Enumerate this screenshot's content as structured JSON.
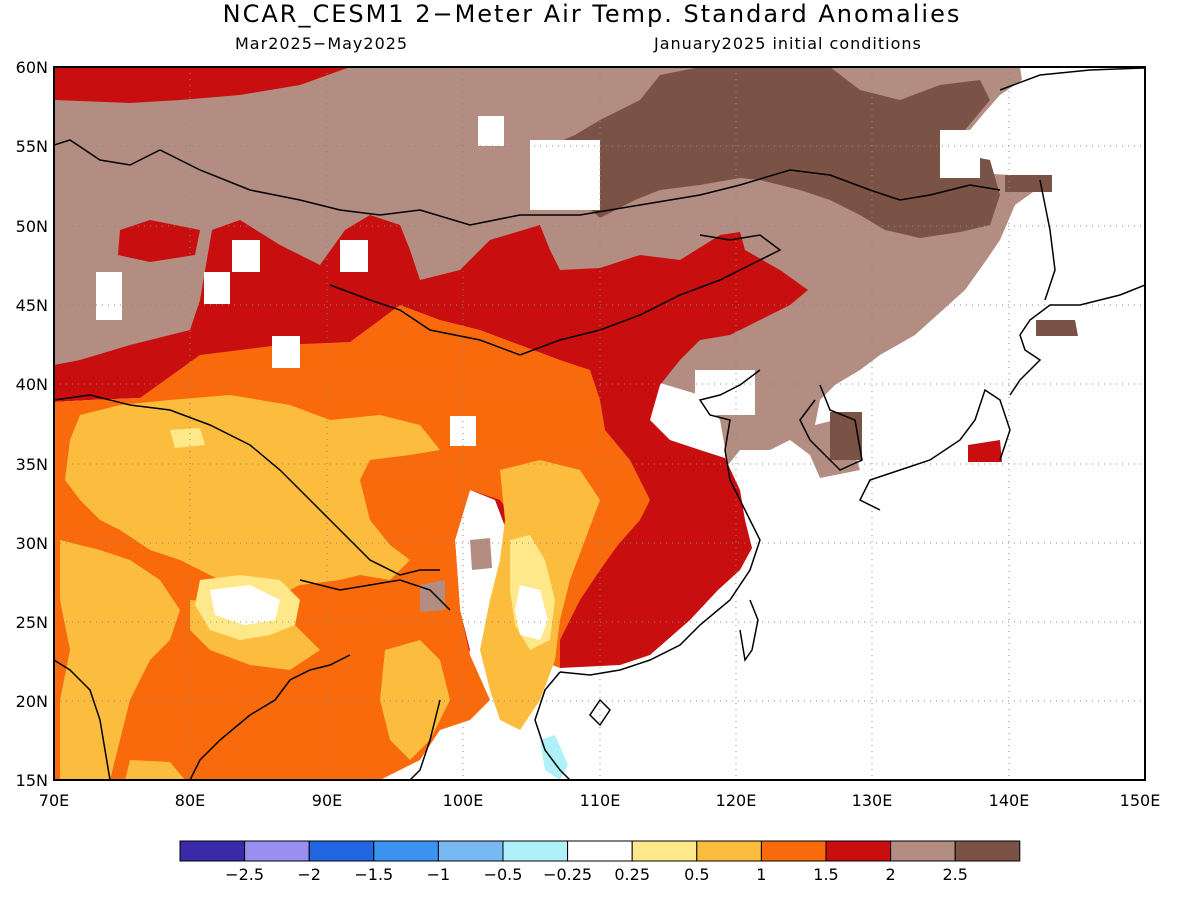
{
  "header": {
    "title": "NCAR_CESM1 2−Meter Air Temp. Standard Anomalies",
    "period": "Mar2025−May2025",
    "init": "January2025 initial conditions"
  },
  "map": {
    "lon_range": [
      70,
      150
    ],
    "lat_range": [
      15,
      60
    ],
    "lat_labels": [
      "60N",
      "55N",
      "50N",
      "45N",
      "40N",
      "35N",
      "30N",
      "25N",
      "20N",
      "15N"
    ],
    "lon_labels": [
      "70E",
      "80E",
      "90E",
      "100E",
      "110E",
      "120E",
      "130E",
      "140E",
      "150E"
    ],
    "grid": "dotted"
  },
  "colorbar": {
    "colors": [
      "#3b2aa8",
      "#9a8ff0",
      "#2066e0",
      "#3c92f0",
      "#78b8f4",
      "#b0f0f8",
      "#ffffff",
      "#ffe88a",
      "#fcbd3e",
      "#f96a0c",
      "#c80e0e",
      "#b48d82",
      "#7b5246"
    ],
    "labels": [
      "−2.5",
      "−2",
      "−1.5",
      "−1",
      "−0.5",
      "−0.25",
      "0.25",
      "0.5",
      "1",
      "1.5",
      "2",
      "2.5"
    ]
  }
}
